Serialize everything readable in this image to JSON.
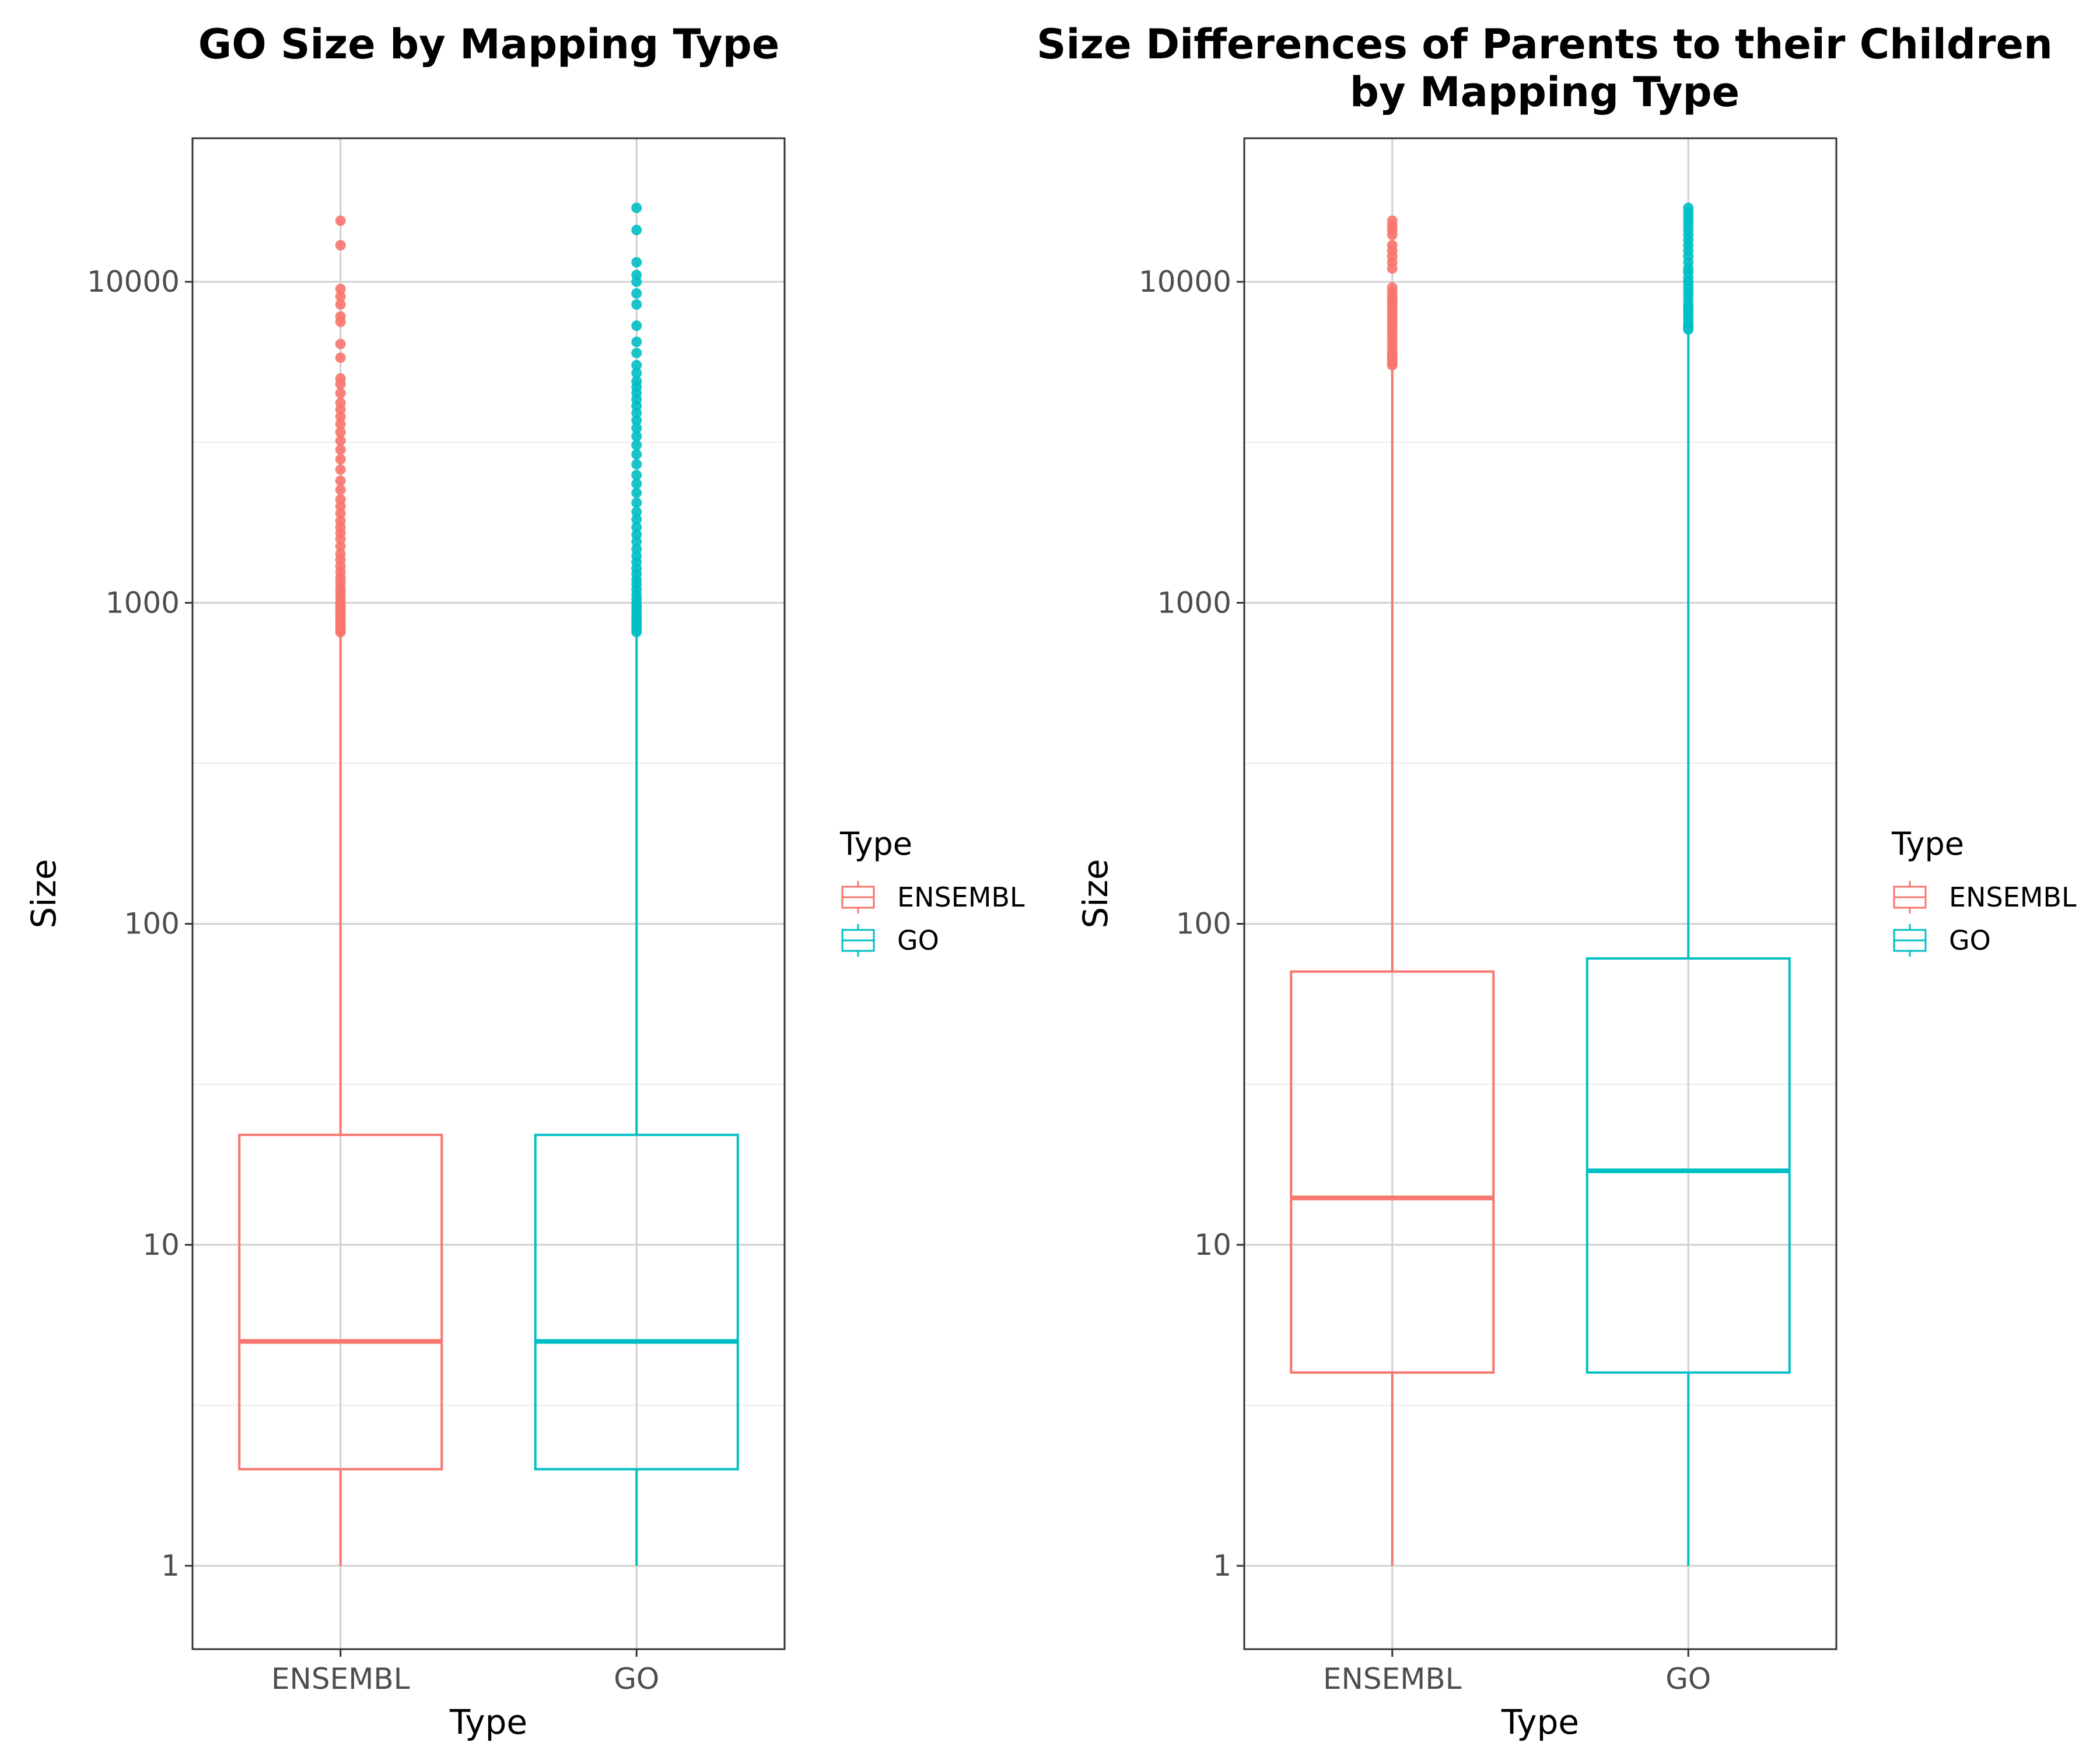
{
  "chart_data": [
    {
      "type": "boxplot",
      "title": "GO Size by Mapping Type",
      "title_line2": "",
      "xlabel": "Type",
      "ylabel": "Size",
      "yscale": "log10",
      "ylim": [
        0.55,
        28000
      ],
      "yticks": [
        1,
        10,
        100,
        1000,
        10000
      ],
      "ytick_labels": [
        "1",
        "10",
        "100",
        "1000",
        "10000"
      ],
      "categories": [
        "ENSEMBL",
        "GO"
      ],
      "boxes": [
        {
          "category": "ENSEMBL",
          "color": "#F8766D",
          "whisker_low": 1,
          "q1": 2,
          "median": 5,
          "q3": 22,
          "whisker_high": 800,
          "outliers": [
            810,
            820,
            830,
            845,
            860,
            875,
            890,
            905,
            920,
            940,
            960,
            980,
            1000,
            1030,
            1060,
            1090,
            1120,
            1160,
            1200,
            1250,
            1300,
            1360,
            1420,
            1500,
            1580,
            1650,
            1720,
            1800,
            1900,
            2000,
            2100,
            2250,
            2400,
            2600,
            2800,
            3000,
            3200,
            3400,
            3600,
            3800,
            4000,
            4200,
            4500,
            4800,
            5000,
            5800,
            6400,
            7500,
            7800,
            8500,
            9000,
            9500,
            13000,
            15500
          ]
        },
        {
          "category": "GO",
          "color": "#00BFC4",
          "whisker_low": 1,
          "q1": 2,
          "median": 5,
          "q3": 22,
          "whisker_high": 800,
          "outliers": [
            810,
            825,
            840,
            855,
            870,
            885,
            900,
            920,
            940,
            960,
            980,
            1000,
            1030,
            1060,
            1100,
            1140,
            1180,
            1230,
            1280,
            1340,
            1400,
            1470,
            1550,
            1630,
            1720,
            1820,
            1920,
            2050,
            2200,
            2350,
            2500,
            2700,
            2900,
            3100,
            3300,
            3500,
            3700,
            3900,
            4100,
            4300,
            4500,
            4700,
            4900,
            5200,
            5500,
            6000,
            6500,
            7300,
            8500,
            9200,
            10000,
            10500,
            11500,
            14500,
            17000
          ]
        }
      ],
      "legend": {
        "title": "Type",
        "entries": [
          "ENSEMBL",
          "GO"
        ],
        "position": "right"
      },
      "grid": true
    },
    {
      "type": "boxplot",
      "title": "Size Differences of Parents to their Children",
      "title_line2": "by Mapping Type",
      "xlabel": "Type",
      "ylabel": "Size",
      "yscale": "log10",
      "ylim": [
        0.55,
        28000
      ],
      "yticks": [
        1,
        10,
        100,
        1000,
        10000
      ],
      "ytick_labels": [
        "1",
        "10",
        "100",
        "1000",
        "10000"
      ],
      "categories": [
        "ENSEMBL",
        "GO"
      ],
      "boxes": [
        {
          "category": "ENSEMBL",
          "color": "#F8766D",
          "whisker_low": 1,
          "q1": 4,
          "median": 14,
          "q3": 71,
          "whisker_high": 5400,
          "outliers": [
            5500,
            5600,
            5700,
            5800,
            5900,
            6000,
            6200,
            6400,
            6600,
            6800,
            7000,
            7200,
            7400,
            7600,
            7800,
            8000,
            8200,
            8400,
            8600,
            8800,
            9000,
            9300,
            9600,
            11000,
            11500,
            12000,
            12500,
            13000,
            14000,
            14500,
            15000,
            15500
          ]
        },
        {
          "category": "GO",
          "color": "#00BFC4",
          "whisker_low": 1,
          "q1": 4,
          "median": 17,
          "q3": 78,
          "whisker_high": 7000,
          "outliers": [
            7100,
            7200,
            7300,
            7500,
            7700,
            7900,
            8100,
            8300,
            8500,
            8800,
            9100,
            9400,
            9700,
            10000,
            10300,
            10700,
            11000,
            11500,
            12000,
            12500,
            13000,
            13500,
            14000,
            14500,
            15000,
            15500,
            16000,
            16500,
            17000
          ]
        }
      ],
      "legend": {
        "title": "Type",
        "entries": [
          "ENSEMBL",
          "GO"
        ],
        "position": "right"
      },
      "grid": true
    }
  ]
}
